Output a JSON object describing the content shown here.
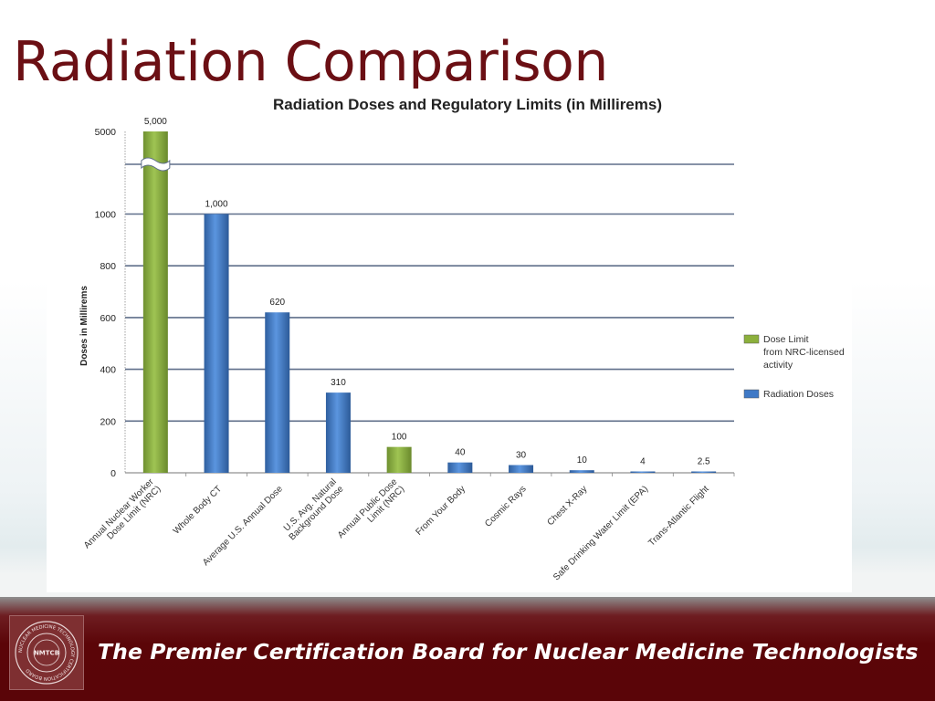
{
  "slide": {
    "title": "Radiation Comparison",
    "tagline": "The Premier Certification Board for Nuclear Medicine Technologists",
    "seal_text": "NMTCB",
    "seal_ring_text": "NUCLEAR MEDICINE TECHNOLOGY CERTIFICATION BOARD"
  },
  "chart_data": {
    "type": "bar",
    "title": "Radiation Doses and Regulatory Limits (in Millirems)",
    "ylabel": "Doses in Millirems",
    "xlabel": "",
    "ylim": [
      0,
      5000
    ],
    "axis_break": true,
    "yticks": [
      0,
      200,
      400,
      600,
      800,
      1000,
      5000
    ],
    "categories": [
      "Annual Nuclear Worker Dose Limit (NRC)",
      "Whole Body CT",
      "Average U.S. Annual Dose",
      "U.S. Avg. Natural Background Dose",
      "Annual Public Dose Limit (NRC)",
      "From Your Body",
      "Cosmic Rays",
      "Chest X-Ray",
      "Safe Drinking Water Limit (EPA)",
      "Trans-Atlantic Flight"
    ],
    "category_label_lines": [
      [
        "Annual Nuclear Worker",
        "Dose Limit (NRC)"
      ],
      [
        "Whole Body CT"
      ],
      [
        "Average U.S. Annual Dose"
      ],
      [
        "U.S. Avg. Natural",
        "Background Dose"
      ],
      [
        "Annual Public Dose",
        "Limit (NRC)"
      ],
      [
        "From Your Body"
      ],
      [
        "Cosmic Rays"
      ],
      [
        "Chest X-Ray"
      ],
      [
        "Safe Drinking Water Limit (EPA)"
      ],
      [
        "Trans-Atlantic Flight"
      ]
    ],
    "values": [
      5000,
      1000,
      620,
      310,
      100,
      40,
      30,
      10,
      4,
      2.5
    ],
    "value_labels": [
      "5,000",
      "1,000",
      "620",
      "310",
      "100",
      "40",
      "30",
      "10",
      "4",
      "2.5"
    ],
    "series_type": [
      "limit",
      "dose",
      "dose",
      "dose",
      "limit",
      "dose",
      "dose",
      "dose",
      "dose",
      "dose"
    ],
    "legend": [
      {
        "key": "limit",
        "lines": [
          "Dose Limit",
          "from NRC-licensed",
          "activity"
        ],
        "color": "#8cb03c"
      },
      {
        "key": "dose",
        "lines": [
          "Radiation Doses"
        ],
        "color": "#3f79c6"
      }
    ],
    "legend_position": "right",
    "grid": true,
    "colors": {
      "limit": "#8cb03c",
      "dose": "#3f79c6"
    }
  }
}
